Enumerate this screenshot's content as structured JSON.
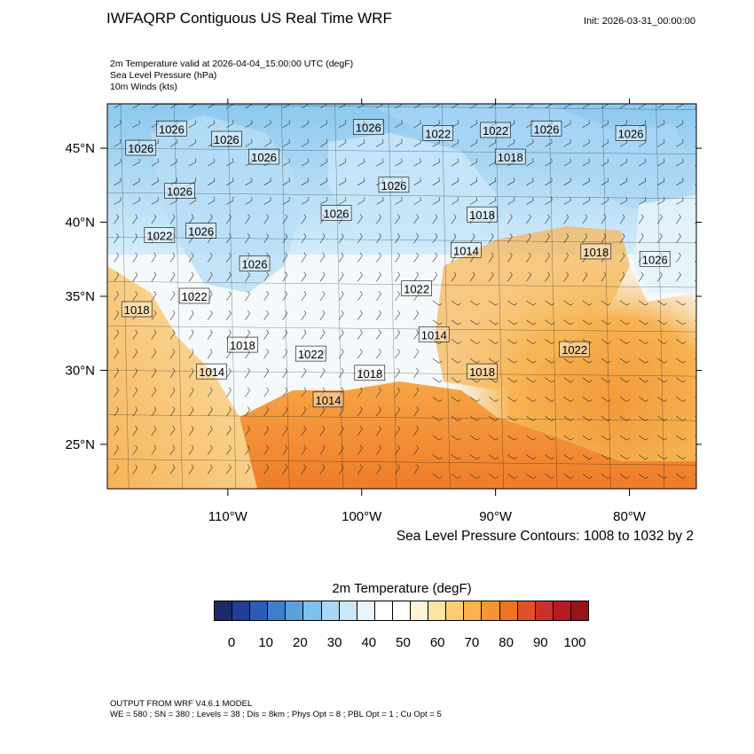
{
  "header": {
    "title": "IWFAQRP Contiguous US Real Time WRF",
    "init": "Init: 2026-03-31_00:00:00",
    "subtitle_lines": [
      "2m Temperature valid at 2026-04-04_15:00:00 UTC   (degF)",
      "Sea Level Pressure   (hPa)",
      "10m Winds   (kts)"
    ]
  },
  "map": {
    "projection": "lat-lon",
    "lon_range": [
      -119,
      -75
    ],
    "lat_range": [
      22,
      48
    ],
    "lon_ticks": [
      {
        "lon": -110,
        "label": "110°W"
      },
      {
        "lon": -100,
        "label": "100°W"
      },
      {
        "lon": -90,
        "label": "90°W"
      },
      {
        "lon": -80,
        "label": "80°W"
      }
    ],
    "lat_ticks": [
      {
        "lat": 45,
        "label": "45°N"
      },
      {
        "lat": 40,
        "label": "40°N"
      },
      {
        "lat": 35,
        "label": "35°N"
      },
      {
        "lat": 30,
        "label": "30°N"
      },
      {
        "lat": 25,
        "label": "25°N"
      }
    ],
    "pressure_labels": [
      {
        "text": "1026",
        "lon": -114.2,
        "lat": 46.3
      },
      {
        "text": "1026",
        "lon": -110.1,
        "lat": 45.6
      },
      {
        "text": "1026",
        "lon": -116.5,
        "lat": 45.0
      },
      {
        "text": "1026",
        "lon": -107.3,
        "lat": 44.4
      },
      {
        "text": "1026",
        "lon": -113.6,
        "lat": 42.1
      },
      {
        "text": "1026",
        "lon": -112.0,
        "lat": 39.4
      },
      {
        "text": "1022",
        "lon": -115.1,
        "lat": 39.1
      },
      {
        "text": "1026",
        "lon": -108.0,
        "lat": 37.2
      },
      {
        "text": "1022",
        "lon": -112.5,
        "lat": 35.0
      },
      {
        "text": "1018",
        "lon": -116.8,
        "lat": 34.1
      },
      {
        "text": "1018",
        "lon": -108.9,
        "lat": 31.7
      },
      {
        "text": "1022",
        "lon": -103.8,
        "lat": 31.1
      },
      {
        "text": "1014",
        "lon": -111.2,
        "lat": 29.9
      },
      {
        "text": "1018",
        "lon": -99.4,
        "lat": 29.8
      },
      {
        "text": "1014",
        "lon": -102.5,
        "lat": 28.0
      },
      {
        "text": "1026",
        "lon": -99.5,
        "lat": 46.4
      },
      {
        "text": "1022",
        "lon": -94.3,
        "lat": 46.0
      },
      {
        "text": "1022",
        "lon": -90.0,
        "lat": 46.2
      },
      {
        "text": "1026",
        "lon": -86.2,
        "lat": 46.3
      },
      {
        "text": "1026",
        "lon": -79.9,
        "lat": 46.0
      },
      {
        "text": "1018",
        "lon": -88.9,
        "lat": 44.4
      },
      {
        "text": "1026",
        "lon": -97.6,
        "lat": 42.5
      },
      {
        "text": "1026",
        "lon": -101.9,
        "lat": 40.6
      },
      {
        "text": "1018",
        "lon": -91.0,
        "lat": 40.5
      },
      {
        "text": "1014",
        "lon": -92.2,
        "lat": 38.1
      },
      {
        "text": "1018",
        "lon": -82.5,
        "lat": 38.0
      },
      {
        "text": "1026",
        "lon": -78.1,
        "lat": 37.5
      },
      {
        "text": "1022",
        "lon": -95.9,
        "lat": 35.5
      },
      {
        "text": "1014",
        "lon": -94.6,
        "lat": 32.4
      },
      {
        "text": "1018",
        "lon": -91.0,
        "lat": 29.9
      },
      {
        "text": "1022",
        "lon": -84.1,
        "lat": 31.4
      }
    ]
  },
  "contour_note": "Sea Level Pressure Contours: 1008 to 1032 by 2",
  "colorbar": {
    "title": "2m Temperature  (degF)",
    "colors": [
      "#1a2a6c",
      "#203f96",
      "#2a5db6",
      "#3c7fcc",
      "#5aa2de",
      "#7fc0ec",
      "#a8d8f5",
      "#cbe8fa",
      "#e9f5fd",
      "#ffffff",
      "#ffffff",
      "#fff4d6",
      "#ffe3a3",
      "#fdcc73",
      "#f9b24c",
      "#f59635",
      "#ee7424",
      "#e2512a",
      "#cf2f2a",
      "#b81a22",
      "#961519"
    ],
    "ticks": [
      {
        "value": 0,
        "label": "0"
      },
      {
        "value": 10,
        "label": "10"
      },
      {
        "value": 20,
        "label": "20"
      },
      {
        "value": 30,
        "label": "30"
      },
      {
        "value": 40,
        "label": "40"
      },
      {
        "value": 50,
        "label": "50"
      },
      {
        "value": 60,
        "label": "60"
      },
      {
        "value": 70,
        "label": "70"
      },
      {
        "value": 80,
        "label": "80"
      },
      {
        "value": 90,
        "label": "90"
      },
      {
        "value": 100,
        "label": "100"
      }
    ]
  },
  "footer": {
    "line1": "OUTPUT FROM WRF V4.6.1 MODEL",
    "line2": "WE = 580 ; SN = 380 ; Levels = 38 ; Dis = 8km ; Phys Opt = 8 ; PBL Opt = 1 ; Cu Opt = 5"
  }
}
